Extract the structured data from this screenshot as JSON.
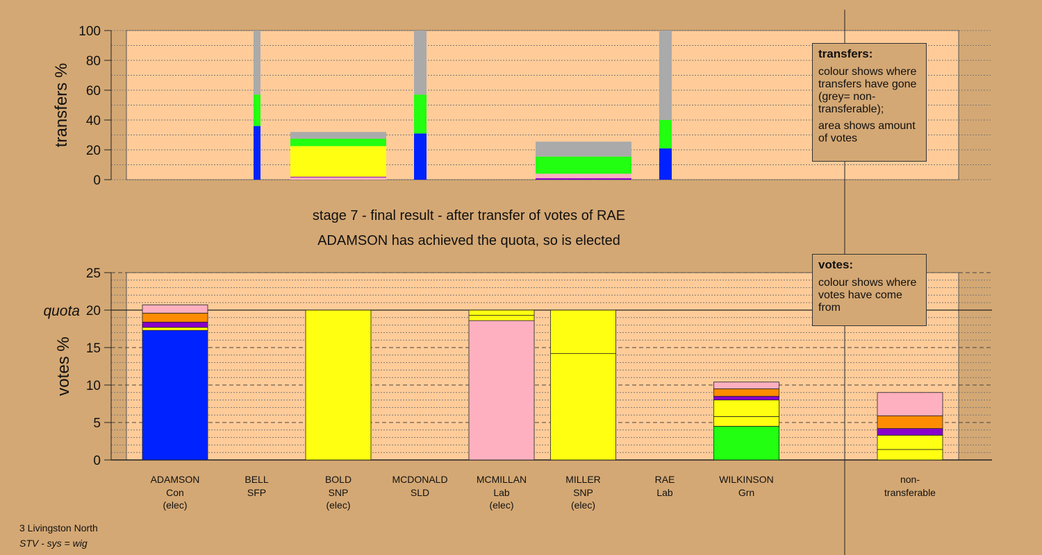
{
  "stage_line": "stage 7 - final result - after transfer of votes of RAE",
  "result_line": "ADAMSON has achieved the quota, so is elected",
  "legend_transfers": {
    "title": "transfers:",
    "text1": "colour shows where transfers have gone (grey= non-transferable);",
    "text2": "area shows amount of votes"
  },
  "legend_votes": {
    "title": "votes:",
    "text1": "colour shows where votes have come from"
  },
  "footer": {
    "line1": "3 Livingston North",
    "line2": "STV - sys = wig"
  },
  "colors": {
    "background": "#d4a874",
    "plot_bg": "#ffcc99",
    "blue": "#0022ff",
    "green": "#22ff11",
    "yellow": "#ffff11",
    "pink": "#ffb0c0",
    "orange": "#ff8c00",
    "purple": "#8800cc",
    "grey": "#aaaaaa"
  },
  "chart_data": [
    {
      "type": "bar",
      "ylabel": "transfers %",
      "ylim": [
        0,
        100
      ],
      "yticks": [
        "0",
        "20",
        "40",
        "60",
        "80",
        "100"
      ],
      "stacked": true,
      "bars": [
        {
          "category": "BELL",
          "width": "narrow",
          "segments": [
            {
              "color": "blue",
              "value": 36
            },
            {
              "color": "green",
              "value": 21
            },
            {
              "color": "grey",
              "value": 43
            }
          ]
        },
        {
          "category": "BOLD",
          "width": "wide",
          "segments": [
            {
              "color": "pink",
              "value": 1.5
            },
            {
              "color": "purple",
              "value": 0.5
            },
            {
              "color": "yellow",
              "value": 20.5
            },
            {
              "color": "green",
              "value": 5
            },
            {
              "color": "grey",
              "value": 4.5
            }
          ]
        },
        {
          "category": "MCDONALD",
          "width": "narrow",
          "segments": [
            {
              "color": "blue",
              "value": 31
            },
            {
              "color": "green",
              "value": 26
            },
            {
              "color": "grey",
              "value": 43
            }
          ]
        },
        {
          "category": "MILLER",
          "width": "wide",
          "segments": [
            {
              "color": "purple",
              "value": 1
            },
            {
              "color": "pink",
              "value": 3
            },
            {
              "color": "green",
              "value": 11.5
            },
            {
              "color": "grey",
              "value": 10
            }
          ]
        },
        {
          "category": "RAE",
          "width": "narrow",
          "segments": [
            {
              "color": "blue",
              "value": 21
            },
            {
              "color": "green",
              "value": 19
            },
            {
              "color": "grey",
              "value": 60
            }
          ]
        }
      ]
    },
    {
      "type": "bar",
      "ylabel": "votes %",
      "ylim": [
        0,
        25
      ],
      "yticks": [
        "0",
        "5",
        "10",
        "15",
        "20",
        "25"
      ],
      "quota": 20,
      "quota_label": "quota",
      "stacked": true,
      "candidates": [
        {
          "name": "ADAMSON",
          "party": "Con",
          "status": "(elec)",
          "segments": [
            {
              "color": "blue",
              "value": 17.3
            },
            {
              "color": "yellow",
              "value": 0.4
            },
            {
              "color": "purple",
              "value": 0.7
            },
            {
              "color": "orange",
              "value": 1.2
            },
            {
              "color": "pink",
              "value": 1.1
            }
          ]
        },
        {
          "name": "BELL",
          "party": "SFP",
          "status": "",
          "segments": []
        },
        {
          "name": "BOLD",
          "party": "SNP",
          "status": "(elec)",
          "segments": [
            {
              "color": "yellow",
              "value": 20
            }
          ]
        },
        {
          "name": "MCDONALD",
          "party": "SLD",
          "status": "",
          "segments": []
        },
        {
          "name": "MCMILLAN",
          "party": "Lab",
          "status": "(elec)",
          "segments": [
            {
              "color": "pink",
              "value": 18.6
            },
            {
              "color": "yellow",
              "value": 0.7
            },
            {
              "color": "yellow",
              "value": 0.7
            }
          ]
        },
        {
          "name": "MILLER",
          "party": "SNP",
          "status": "(elec)",
          "segments": [
            {
              "color": "yellow",
              "value": 14.2
            },
            {
              "color": "yellow",
              "value": 5.8
            }
          ]
        },
        {
          "name": "RAE",
          "party": "Lab",
          "status": "",
          "segments": []
        },
        {
          "name": "WILKINSON",
          "party": "Grn",
          "status": "",
          "segments": [
            {
              "color": "green",
              "value": 4.5
            },
            {
              "color": "yellow",
              "value": 1.3
            },
            {
              "color": "yellow",
              "value": 2.2
            },
            {
              "color": "purple",
              "value": 0.5
            },
            {
              "color": "orange",
              "value": 1.0
            },
            {
              "color": "pink",
              "value": 0.9
            }
          ]
        }
      ],
      "nontransferable": {
        "name": "non-",
        "name2": "transferable",
        "segments": [
          {
            "color": "yellow",
            "value": 1.4
          },
          {
            "color": "yellow",
            "value": 1.9
          },
          {
            "color": "purple",
            "value": 0.9
          },
          {
            "color": "orange",
            "value": 1.7
          },
          {
            "color": "pink",
            "value": 3.1
          }
        ]
      }
    }
  ]
}
